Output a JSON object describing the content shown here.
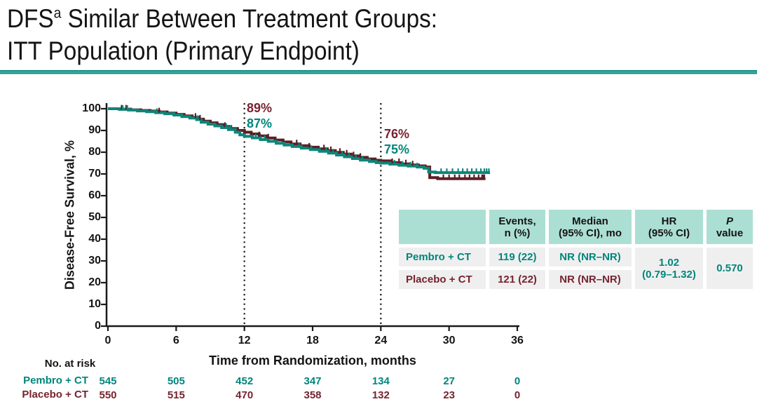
{
  "slide": {
    "title_part1": "DFS",
    "title_sup": "a",
    "title_part2": " Similar Between Treatment Groups:",
    "title_line2": "ITT Population (Primary Endpoint)"
  },
  "colors": {
    "teal": "#00857C",
    "teal_curve": "#0E8579",
    "maroon_text": "#76232F",
    "maroon_curve": "#5C1F24",
    "header_fill": "#ACDFD3",
    "row_fill": "#EFEFEF",
    "rule_teal": "#0E8D81",
    "axis": "#1A1A1A"
  },
  "chart_data": {
    "type": "line",
    "subtype": "kaplan-meier-step",
    "title": "",
    "xlabel": "Time from Randomization, months",
    "ylabel": "Disease-Free  Survival, %",
    "xlim": [
      0,
      36
    ],
    "ylim": [
      0,
      100
    ],
    "xticks": [
      0,
      6,
      12,
      18,
      24,
      30,
      36
    ],
    "yticks": [
      0,
      10,
      20,
      30,
      40,
      50,
      60,
      70,
      80,
      90,
      100
    ],
    "grid": false,
    "reference_lines_months": [
      12,
      24
    ],
    "annotations": [
      {
        "t": 12,
        "series": "Placebo + CT",
        "label": "89%"
      },
      {
        "t": 12,
        "series": "Pembro + CT",
        "label": "87%"
      },
      {
        "t": 24,
        "series": "Placebo + CT",
        "label": "76%"
      },
      {
        "t": 24,
        "series": "Pembro + CT",
        "label": "75%"
      }
    ],
    "series": [
      {
        "name": "Pembro + CT",
        "color": "teal",
        "steps": [
          [
            0,
            100
          ],
          [
            1,
            99.7
          ],
          [
            1.8,
            99.4
          ],
          [
            2.6,
            99.0
          ],
          [
            3.4,
            98.6
          ],
          [
            4.2,
            98.2
          ],
          [
            5,
            97.7
          ],
          [
            5.8,
            97.1
          ],
          [
            6.5,
            96.4
          ],
          [
            7.2,
            95.7
          ],
          [
            7.8,
            95.0
          ],
          [
            8.2,
            93.8
          ],
          [
            8.8,
            92.9
          ],
          [
            9.4,
            92.1
          ],
          [
            10,
            91.3
          ],
          [
            10.6,
            90.4
          ],
          [
            11.2,
            89.2
          ],
          [
            11.6,
            88.0
          ],
          [
            12,
            87.3
          ],
          [
            12.7,
            86.6
          ],
          [
            13.4,
            85.8
          ],
          [
            14.1,
            85.0
          ],
          [
            14.8,
            84.1
          ],
          [
            15.5,
            83.3
          ],
          [
            16.2,
            82.6
          ],
          [
            17,
            81.9
          ],
          [
            17.8,
            81.2
          ],
          [
            18.6,
            80.4
          ],
          [
            19.4,
            79.6
          ],
          [
            20.1,
            78.7
          ],
          [
            20.8,
            77.9
          ],
          [
            21.5,
            77.1
          ],
          [
            22.2,
            76.4
          ],
          [
            23,
            75.7
          ],
          [
            23.6,
            75.2
          ],
          [
            24,
            75.0
          ],
          [
            24.8,
            74.5
          ],
          [
            25.6,
            74.0
          ],
          [
            26.4,
            73.6
          ],
          [
            27.2,
            73.2
          ],
          [
            27.8,
            72.6
          ],
          [
            28.2,
            70.9
          ],
          [
            28.8,
            70.6
          ],
          [
            33.6,
            70.6
          ]
        ],
        "censors": [
          1.3,
          1.7,
          4.3,
          7.9,
          10.4,
          10.8,
          13.0,
          13.8,
          16.8,
          17.9,
          19.2,
          19.8,
          20.6,
          21.2,
          21.8,
          22.4,
          25.2,
          25.9,
          26.6,
          27.2,
          29.3,
          29.8,
          30.3,
          30.8,
          31.2,
          31.6,
          32.0,
          32.4,
          32.8,
          33.1,
          33.3,
          33.5
        ]
      },
      {
        "name": "Placebo + CT",
        "color": "maroon",
        "steps": [
          [
            0,
            100
          ],
          [
            1.1,
            99.8
          ],
          [
            2,
            99.5
          ],
          [
            2.9,
            99.2
          ],
          [
            3.7,
            98.9
          ],
          [
            4.5,
            98.5
          ],
          [
            5.2,
            98.0
          ],
          [
            6,
            97.4
          ],
          [
            6.7,
            96.7
          ],
          [
            7.4,
            96.0
          ],
          [
            8,
            95.2
          ],
          [
            8.4,
            94.3
          ],
          [
            9,
            93.5
          ],
          [
            9.6,
            92.7
          ],
          [
            10.2,
            91.8
          ],
          [
            10.8,
            90.9
          ],
          [
            11.4,
            90.0
          ],
          [
            12,
            89.2
          ],
          [
            12.6,
            88.4
          ],
          [
            13.3,
            87.5
          ],
          [
            14,
            86.5
          ],
          [
            14.7,
            85.6
          ],
          [
            15.4,
            84.7
          ],
          [
            16.1,
            83.8
          ],
          [
            16.9,
            83.0
          ],
          [
            17.7,
            82.3
          ],
          [
            18.5,
            81.5
          ],
          [
            19.3,
            80.7
          ],
          [
            20,
            79.9
          ],
          [
            20.7,
            79.1
          ],
          [
            21.4,
            78.3
          ],
          [
            22.1,
            77.6
          ],
          [
            22.8,
            76.9
          ],
          [
            23.5,
            76.3
          ],
          [
            24,
            76.0
          ],
          [
            24.9,
            75.2
          ],
          [
            25.7,
            74.6
          ],
          [
            26.5,
            74.1
          ],
          [
            27.3,
            73.7
          ],
          [
            27.9,
            73.2
          ],
          [
            28.3,
            68.3
          ],
          [
            29,
            67.8
          ],
          [
            33.2,
            67.8
          ]
        ],
        "censors": [
          1.2,
          1.6,
          4.5,
          7.7,
          8.1,
          10.3,
          13.3,
          14.1,
          16.6,
          17.7,
          19.0,
          19.6,
          20.4,
          21.0,
          21.6,
          22.2,
          25.0,
          25.6,
          26.2,
          26.8,
          29.5,
          30.0,
          30.5,
          30.9,
          31.4,
          31.8,
          32.2,
          32.6,
          32.9,
          33.0,
          33.1
        ]
      }
    ],
    "at_risk": {
      "label": "No. at risk",
      "rows": [
        {
          "name": "Pembro + CT",
          "values": [
            "545",
            "505",
            "452",
            "347",
            "134",
            "27",
            "0"
          ]
        },
        {
          "name": "Placebo + CT",
          "values": [
            "550",
            "515",
            "470",
            "358",
            "132",
            "23",
            "0"
          ]
        }
      ]
    }
  },
  "table": {
    "col_group": "",
    "col_events": "Events,\nn (%)",
    "col_median": "Median\n(95% CI), mo",
    "col_hr": "HR\n(95% CI)",
    "col_p_line1": "P",
    "col_p_line2": "value",
    "rows": [
      {
        "label": "Pembro + CT",
        "events": "119 (22)",
        "median": "NR (NR–NR)"
      },
      {
        "label": "Placebo + CT",
        "events": "121 (22)",
        "median": "NR (NR–NR)"
      }
    ],
    "hr_value": "1.02\n(0.79–1.32)",
    "p_value": "0.570"
  }
}
